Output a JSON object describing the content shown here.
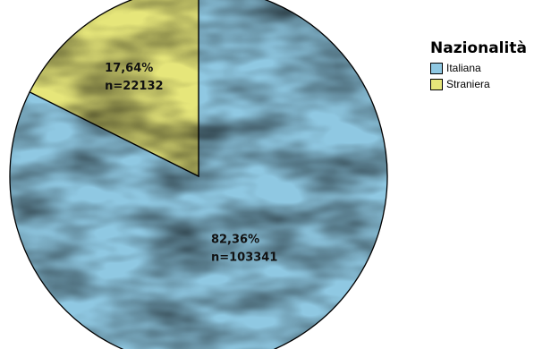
{
  "chart_data": {
    "type": "pie",
    "legend_title": "Nazionalità",
    "legend_position": "top-right",
    "categories": [
      "Italiana",
      "Straniera"
    ],
    "values": [
      103341,
      22132
    ],
    "percent_labels": [
      "82,36%",
      "17,64%"
    ],
    "count_labels": [
      "n=103341",
      "n=22132"
    ],
    "colors": [
      "#8fc8e2",
      "#e6e67a"
    ],
    "start_angle_deg": 0,
    "direction": "clockwise"
  }
}
